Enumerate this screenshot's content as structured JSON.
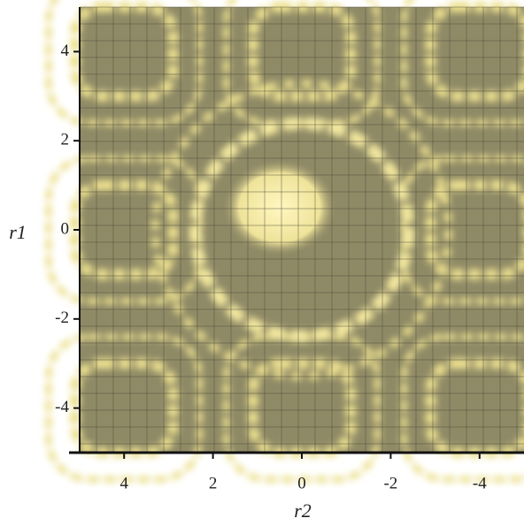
{
  "chart_data": {
    "type": "surface",
    "x_label": "r2",
    "y_label": "r1",
    "xlim": [
      5,
      -5
    ],
    "ylim": [
      -5,
      5
    ],
    "xticks": [
      4,
      2,
      0,
      -2,
      -4
    ],
    "yticks": [
      -4,
      -2,
      0,
      2,
      4
    ]
  }
}
